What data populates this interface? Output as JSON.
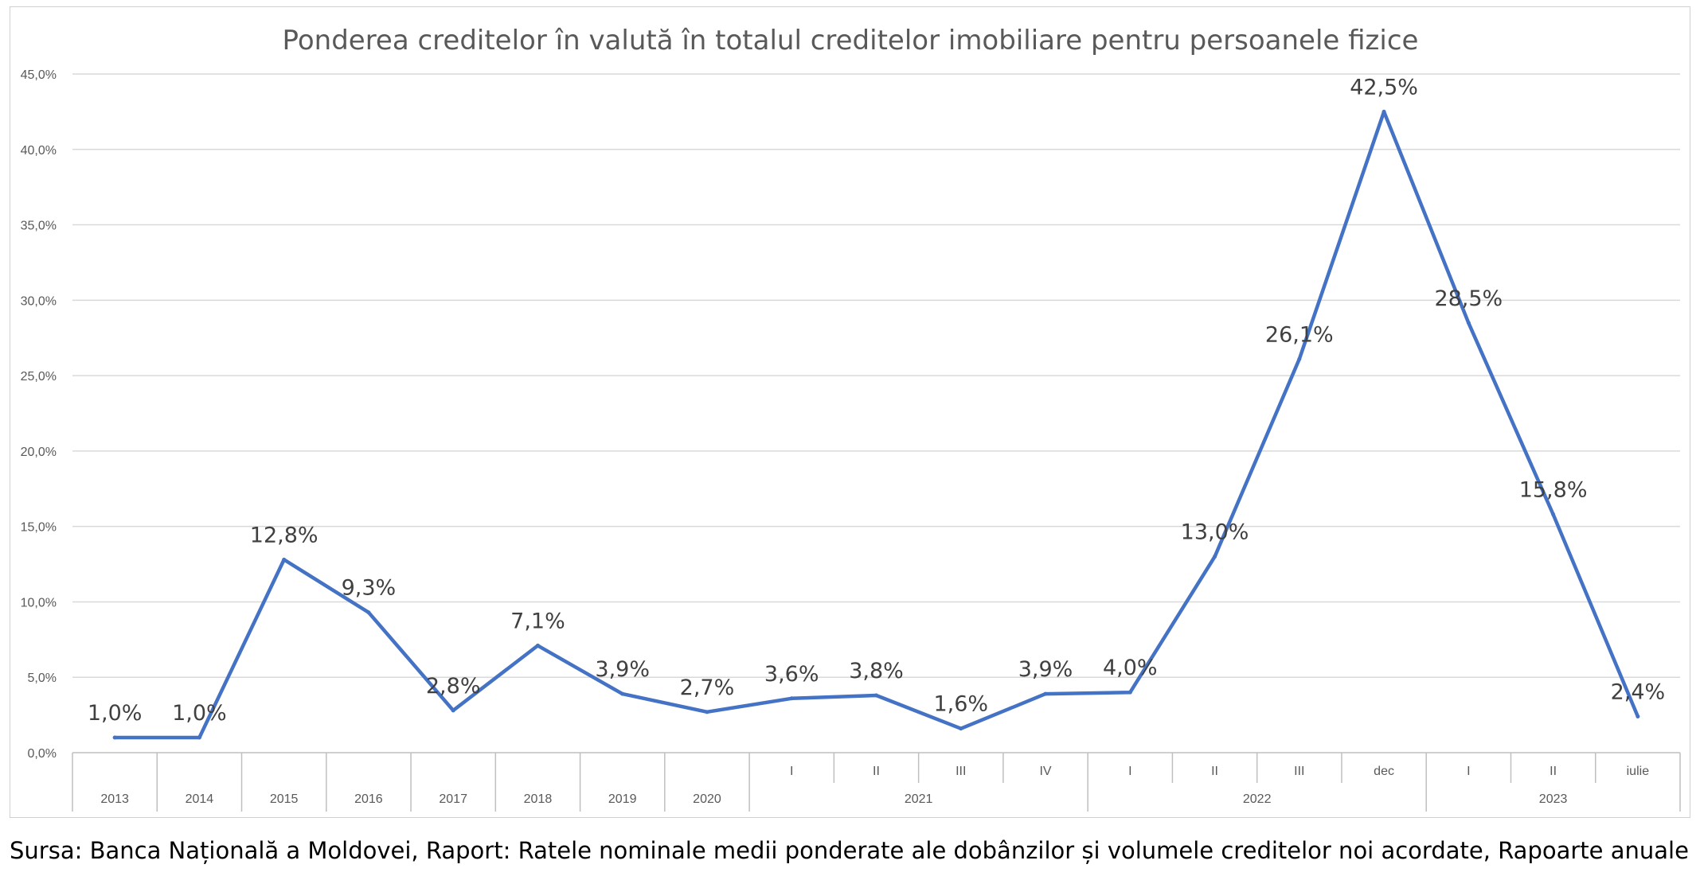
{
  "chart_data": {
    "type": "line",
    "title": "Ponderea creditelor în valută în totalul creditelor imobiliare pentru persoanele fizice",
    "xlabel": "",
    "ylabel": "",
    "ylim": [
      0,
      45
    ],
    "ytick_values": [
      0,
      5,
      10,
      15,
      20,
      25,
      30,
      35,
      40,
      45
    ],
    "ytick_labels": [
      "0,0%",
      "5,0%",
      "10,0%",
      "15,0%",
      "20,0%",
      "25,0%",
      "30,0%",
      "35,0%",
      "40,0%",
      "45,0%"
    ],
    "categories": [
      "2013",
      "2014",
      "2015",
      "2016",
      "2017",
      "2018",
      "2019",
      "2020",
      "I",
      "II",
      "III",
      "IV",
      "I",
      "II",
      "III",
      "dec",
      "I",
      "II",
      "iulie"
    ],
    "category_groups": [
      {
        "label": "2021",
        "start": 8,
        "end": 11
      },
      {
        "label": "2022",
        "start": 12,
        "end": 15
      },
      {
        "label": "2023",
        "start": 16,
        "end": 18
      }
    ],
    "series": [
      {
        "values": [
          1.0,
          1.0,
          12.8,
          9.3,
          2.8,
          7.1,
          3.9,
          2.7,
          3.6,
          3.8,
          1.6,
          3.9,
          4.0,
          13.0,
          26.1,
          42.5,
          28.5,
          15.8,
          2.4
        ],
        "labels": [
          "1,0%",
          "1,0%",
          "12,8%",
          "9,3%",
          "2,8%",
          "7,1%",
          "3,9%",
          "2,7%",
          "3,6%",
          "3,8%",
          "1,6%",
          "3,9%",
          "4,0%",
          "13,0%",
          "26,1%",
          "42,5%",
          "28,5%",
          "15,8%",
          "2,4%"
        ],
        "color": "#4472c4"
      }
    ],
    "grid": true,
    "legend": "none"
  },
  "source_note": "Sursa: Banca Națională a Moldovei, Raport: Ratele nominale medii ponderate ale dobânzilor și volumele creditelor noi acordate, Rapoarte anuale"
}
